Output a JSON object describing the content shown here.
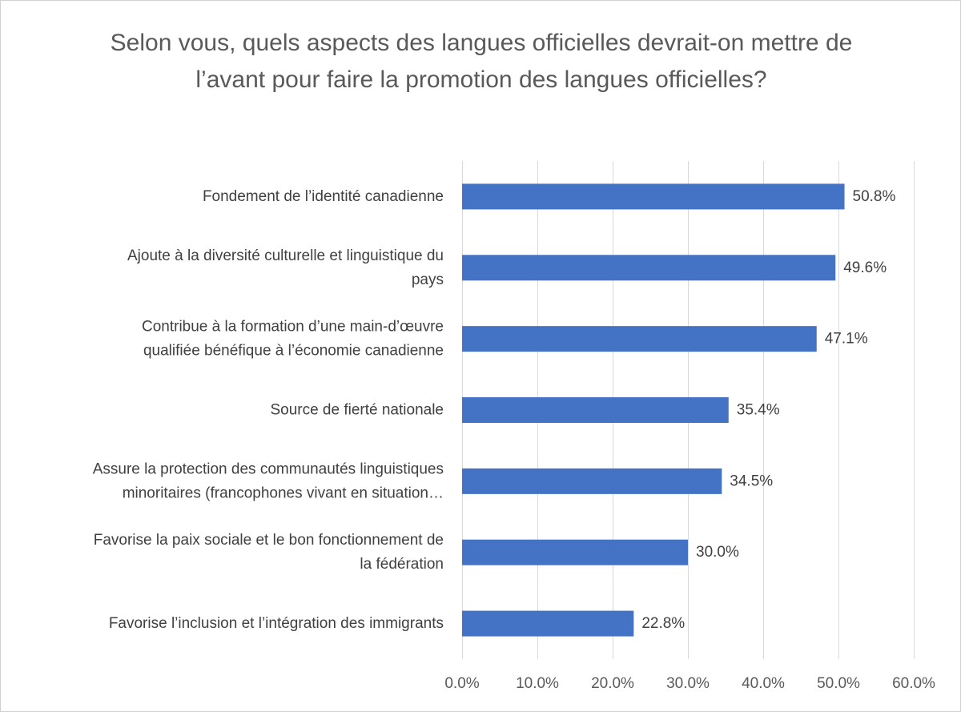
{
  "chart_data": {
    "type": "bar",
    "orientation": "horizontal",
    "title": "Selon vous, quels aspects des langues officielles devrait-on mettre de l’avant pour faire la promotion des langues officielles?",
    "categories": [
      [
        "Fondement de l’identité canadienne"
      ],
      [
        "Ajoute à la diversité culturelle et linguistique du",
        "pays"
      ],
      [
        "Contribue à la formation d’une main-d’œuvre",
        "qualifiée bénéfique à l’économie canadienne"
      ],
      [
        "Source de fierté nationale"
      ],
      [
        "Assure la protection des communautés linguistiques",
        "minoritaires (francophones vivant en situation…"
      ],
      [
        "Favorise la paix sociale et le bon fonctionnement de",
        "la fédération"
      ],
      [
        "Favorise l’inclusion et l’intégration des immigrants"
      ]
    ],
    "values": [
      50.8,
      49.6,
      47.1,
      35.4,
      34.5,
      30.0,
      22.8
    ],
    "data_labels": [
      "50.8%",
      "49.6%",
      "47.1%",
      "35.4%",
      "34.5%",
      "30.0%",
      "22.8%"
    ],
    "xlim": [
      0,
      60
    ],
    "x_ticks": [
      0,
      10,
      20,
      30,
      40,
      50,
      60
    ],
    "x_tick_labels": [
      "0.0%",
      "10.0%",
      "20.0%",
      "30.0%",
      "40.0%",
      "50.0%",
      "60.0%"
    ],
    "xlabel": "",
    "ylabel": "",
    "grid": true,
    "legend": "none",
    "colors": {
      "bar": "#4472c4",
      "grid": "#d9d9d9",
      "text": "#404040",
      "title": "#595959"
    }
  }
}
